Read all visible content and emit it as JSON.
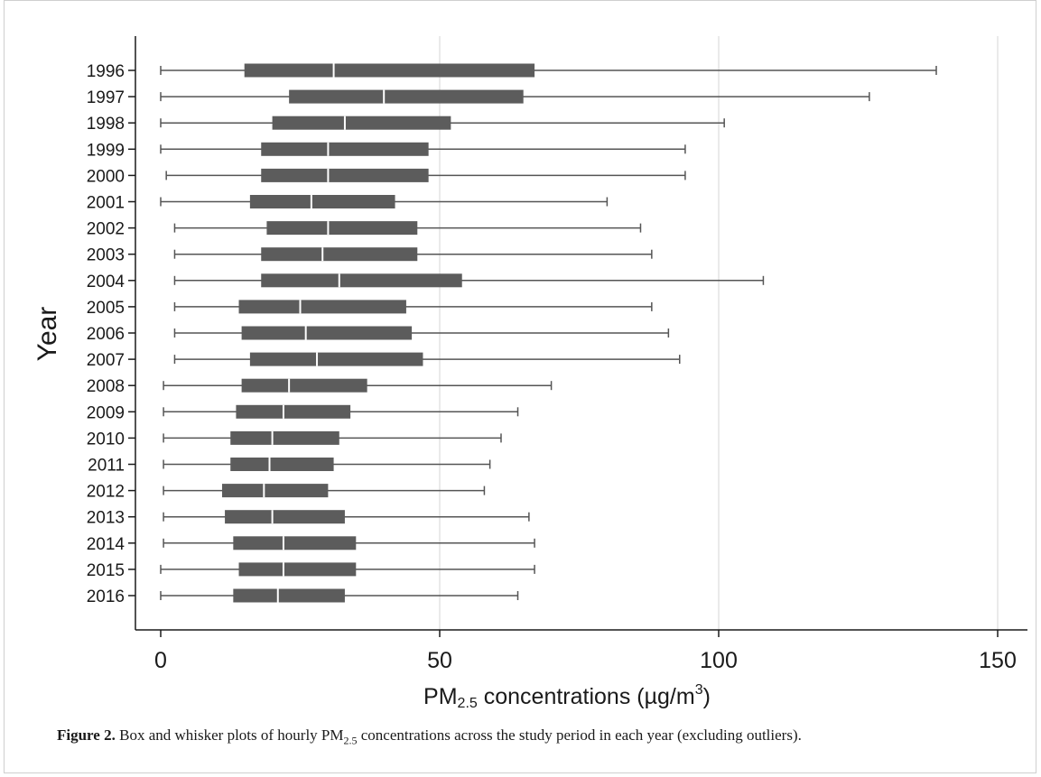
{
  "chart_data": {
    "type": "boxplot",
    "orientation": "horizontal",
    "xlabel_main": "PM",
    "xlabel_sub": "2.5",
    "xlabel_rest": " concentrations (µg/m",
    "xlabel_sup": "3",
    "xlabel_end": ")",
    "ylabel": "Year",
    "xlim": [
      -5,
      155
    ],
    "xticks": [
      0,
      50,
      100,
      150
    ],
    "xtick_labels": [
      "0",
      "50",
      "100",
      "150"
    ],
    "grid": "vertical",
    "box_color": "#5c5c5c",
    "whisker_color": "#555555",
    "grid_color": "#e3e3e3",
    "categories": [
      "1996",
      "1997",
      "1998",
      "1999",
      "2000",
      "2001",
      "2002",
      "2003",
      "2004",
      "2005",
      "2006",
      "2007",
      "2008",
      "2009",
      "2010",
      "2011",
      "2012",
      "2013",
      "2014",
      "2015",
      "2016"
    ],
    "boxes": [
      {
        "min": 0,
        "q1": 15,
        "median": 31,
        "q3": 67,
        "max": 139
      },
      {
        "min": 0,
        "q1": 23,
        "median": 40,
        "q3": 65,
        "max": 127
      },
      {
        "min": 0,
        "q1": 20,
        "median": 33,
        "q3": 52,
        "max": 101
      },
      {
        "min": 0,
        "q1": 18,
        "median": 30,
        "q3": 48,
        "max": 94
      },
      {
        "min": 1,
        "q1": 18,
        "median": 30,
        "q3": 48,
        "max": 94
      },
      {
        "min": 0,
        "q1": 16,
        "median": 27,
        "q3": 42,
        "max": 80
      },
      {
        "min": 2.5,
        "q1": 19,
        "median": 30,
        "q3": 46,
        "max": 86
      },
      {
        "min": 2.5,
        "q1": 18,
        "median": 29,
        "q3": 46,
        "max": 88
      },
      {
        "min": 2.5,
        "q1": 18,
        "median": 32,
        "q3": 54,
        "max": 108
      },
      {
        "min": 2.5,
        "q1": 14,
        "median": 25,
        "q3": 44,
        "max": 88
      },
      {
        "min": 2.5,
        "q1": 14.5,
        "median": 26,
        "q3": 45,
        "max": 91
      },
      {
        "min": 2.5,
        "q1": 16,
        "median": 28,
        "q3": 47,
        "max": 93
      },
      {
        "min": 0.5,
        "q1": 14.5,
        "median": 23,
        "q3": 37,
        "max": 70
      },
      {
        "min": 0.5,
        "q1": 13.5,
        "median": 22,
        "q3": 34,
        "max": 64
      },
      {
        "min": 0.5,
        "q1": 12.5,
        "median": 20,
        "q3": 32,
        "max": 61
      },
      {
        "min": 0.5,
        "q1": 12.5,
        "median": 19.5,
        "q3": 31,
        "max": 59
      },
      {
        "min": 0.5,
        "q1": 11,
        "median": 18.5,
        "q3": 30,
        "max": 58
      },
      {
        "min": 0.5,
        "q1": 11.5,
        "median": 20,
        "q3": 33,
        "max": 66
      },
      {
        "min": 0.5,
        "q1": 13,
        "median": 22,
        "q3": 35,
        "max": 67
      },
      {
        "min": 0,
        "q1": 14,
        "median": 22,
        "q3": 35,
        "max": 67
      },
      {
        "min": 0,
        "q1": 13,
        "median": 21,
        "q3": 33,
        "max": 64
      }
    ]
  },
  "caption": {
    "label": "Figure 2.",
    "text_before": " Box and whisker plots of hourly PM",
    "text_sub": "2.5",
    "text_after": " concentrations across the study period in each year (excluding outliers)."
  }
}
